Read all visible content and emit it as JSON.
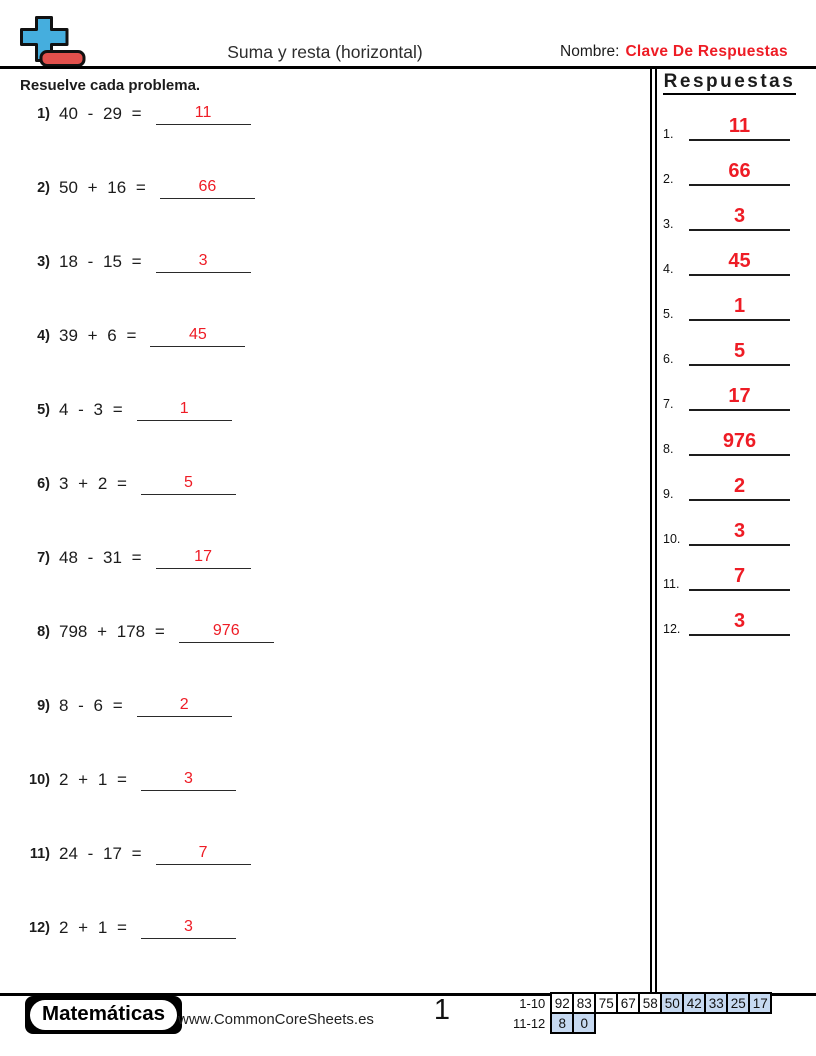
{
  "header": {
    "title": "Suma y resta (horizontal)",
    "name_label": "Nombre:",
    "name_value": "Clave De Respuestas"
  },
  "instructions": "Resuelve cada problema.",
  "problems": [
    {
      "num": "1)",
      "expr": "40 - 29 =",
      "answer": "11"
    },
    {
      "num": "2)",
      "expr": "50 + 16 =",
      "answer": "66"
    },
    {
      "num": "3)",
      "expr": "18 - 15 =",
      "answer": "3"
    },
    {
      "num": "4)",
      "expr": "39 + 6 =",
      "answer": "45"
    },
    {
      "num": "5)",
      "expr": "4 - 3 =",
      "answer": "1"
    },
    {
      "num": "6)",
      "expr": "3 + 2 =",
      "answer": "5"
    },
    {
      "num": "7)",
      "expr": "48 - 31 =",
      "answer": "17"
    },
    {
      "num": "8)",
      "expr": "798 + 178 =",
      "answer": "976"
    },
    {
      "num": "9)",
      "expr": "8 - 6 =",
      "answer": "2"
    },
    {
      "num": "10)",
      "expr": "2 + 1 =",
      "answer": "3"
    },
    {
      "num": "11)",
      "expr": "24 - 17 =",
      "answer": "7"
    },
    {
      "num": "12)",
      "expr": "2 + 1 =",
      "answer": "3"
    }
  ],
  "answers_panel": {
    "title": "Respuestas",
    "items": [
      {
        "num": "1.",
        "value": "11"
      },
      {
        "num": "2.",
        "value": "66"
      },
      {
        "num": "3.",
        "value": "3"
      },
      {
        "num": "4.",
        "value": "45"
      },
      {
        "num": "5.",
        "value": "1"
      },
      {
        "num": "6.",
        "value": "5"
      },
      {
        "num": "7.",
        "value": "17"
      },
      {
        "num": "8.",
        "value": "976"
      },
      {
        "num": "9.",
        "value": "2"
      },
      {
        "num": "10.",
        "value": "3"
      },
      {
        "num": "11.",
        "value": "7"
      },
      {
        "num": "12.",
        "value": "3"
      }
    ]
  },
  "footer": {
    "brand": "Matemáticas",
    "website": "www.CommonCoreSheets.es",
    "page_number": "1",
    "score_table": {
      "rows": [
        {
          "label": "1-10",
          "cells": [
            {
              "v": "92",
              "hl": false
            },
            {
              "v": "83",
              "hl": false
            },
            {
              "v": "75",
              "hl": false
            },
            {
              "v": "67",
              "hl": false
            },
            {
              "v": "58",
              "hl": false
            },
            {
              "v": "50",
              "hl": true
            },
            {
              "v": "42",
              "hl": true
            },
            {
              "v": "33",
              "hl": true
            },
            {
              "v": "25",
              "hl": true
            },
            {
              "v": "17",
              "hl": true
            }
          ]
        },
        {
          "label": "11-12",
          "cells": [
            {
              "v": "8",
              "hl": true
            },
            {
              "v": "0",
              "hl": true
            }
          ]
        }
      ]
    }
  },
  "icons": {
    "logo": "plus-minus-icon"
  },
  "colors": {
    "accent_red": "#ee1c25",
    "table_highlight": "#c6d9f1",
    "logo_blue": "#45aede",
    "logo_red": "#e2504c"
  }
}
